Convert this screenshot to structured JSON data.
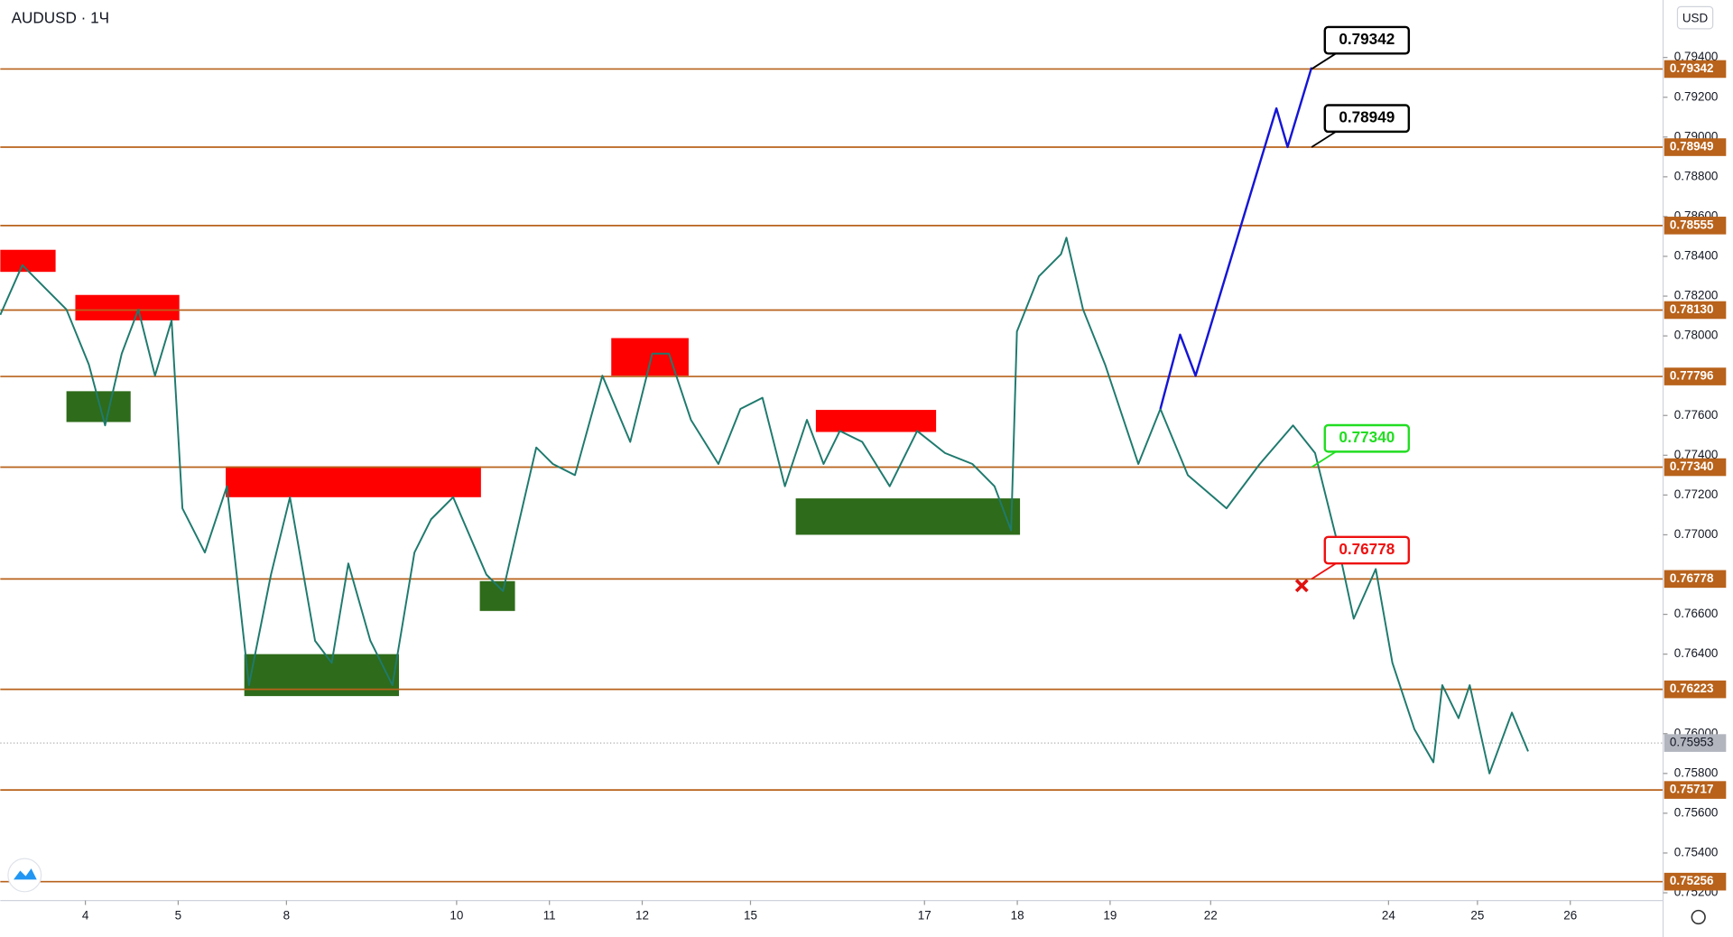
{
  "chart_data": {
    "type": "line",
    "title": "AUDUSD · 1Ч",
    "currency": "USD",
    "xlim": [
      0,
      430
    ],
    "ylim": [
      0.75161,
      0.79689
    ],
    "xticks": [
      {
        "value": 22,
        "label": "4"
      },
      {
        "value": 46,
        "label": "5"
      },
      {
        "value": 74,
        "label": "8"
      },
      {
        "value": 118,
        "label": "10"
      },
      {
        "value": 142,
        "label": "11"
      },
      {
        "value": 166,
        "label": "12"
      },
      {
        "value": 194,
        "label": "15"
      },
      {
        "value": 239,
        "label": "17"
      },
      {
        "value": 263,
        "label": "18"
      },
      {
        "value": 287,
        "label": "19"
      },
      {
        "value": 313,
        "label": "22"
      },
      {
        "value": 359,
        "label": "24"
      },
      {
        "value": 382,
        "label": "25"
      },
      {
        "value": 406,
        "label": "26"
      }
    ],
    "yticks": [
      {
        "value": 0.794,
        "label": "0.79400"
      },
      {
        "value": 0.792,
        "label": "0.79200"
      },
      {
        "value": 0.79,
        "label": "0.79000"
      },
      {
        "value": 0.788,
        "label": "0.78800"
      },
      {
        "value": 0.786,
        "label": "0.78600"
      },
      {
        "value": 0.784,
        "label": "0.78400"
      },
      {
        "value": 0.782,
        "label": "0.78200"
      },
      {
        "value": 0.78,
        "label": "0.78000"
      },
      {
        "value": 0.776,
        "label": "0.77600"
      },
      {
        "value": 0.774,
        "label": "0.77400"
      },
      {
        "value": 0.772,
        "label": "0.77200"
      },
      {
        "value": 0.77,
        "label": "0.77000"
      },
      {
        "value": 0.766,
        "label": "0.76600"
      },
      {
        "value": 0.764,
        "label": "0.76400"
      },
      {
        "value": 0.76,
        "label": "0.76000"
      },
      {
        "value": 0.758,
        "label": "0.75800"
      },
      {
        "value": 0.756,
        "label": "0.75600"
      },
      {
        "value": 0.754,
        "label": "0.75400"
      },
      {
        "value": 0.752,
        "label": "0.75200"
      }
    ],
    "price": {
      "color": "#1f7a6e",
      "x": [
        0,
        5.7,
        11.4,
        17.1,
        22.9,
        27.1,
        31.4,
        35.7,
        40,
        44.3,
        47.1,
        52.9,
        58.6,
        64.3,
        70,
        74.9,
        81.4,
        85.7,
        90,
        95.7,
        101.4,
        107.1,
        111.4,
        117.1,
        125.7,
        130,
        134.3,
        138.6,
        142.9,
        148.6,
        155.7,
        162.9,
        168.6,
        172.9,
        178.6,
        185.7,
        191.4,
        197.1,
        202.9,
        208.6,
        212.9,
        217.1,
        222.9,
        230,
        237.1,
        244.3,
        251.4,
        257.1,
        261.4,
        262.9,
        268.6,
        274.3,
        275.7,
        280,
        285.7,
        294.3,
        300,
        307.1,
        317.1,
        325.7,
        334.3,
        340,
        345.7,
        350,
        355.7,
        360,
        365.7,
        370.6,
        372.9,
        377.1,
        380,
        385.1,
        390.9,
        395.1
      ],
      "values": [
        0.78106,
        0.78356,
        0.78244,
        0.78133,
        0.77856,
        0.7755,
        0.77911,
        0.78133,
        0.778,
        0.78078,
        0.77133,
        0.76911,
        0.77244,
        0.76244,
        0.768,
        0.77189,
        0.76467,
        0.76356,
        0.76856,
        0.76467,
        0.76244,
        0.76911,
        0.77078,
        0.77189,
        0.768,
        0.76717,
        0.77078,
        0.77439,
        0.77356,
        0.773,
        0.778,
        0.77467,
        0.77911,
        0.77911,
        0.77578,
        0.77356,
        0.77633,
        0.77689,
        0.77244,
        0.77578,
        0.77356,
        0.77522,
        0.77467,
        0.77244,
        0.77522,
        0.77411,
        0.77356,
        0.77244,
        0.77022,
        0.78022,
        0.783,
        0.78411,
        0.78494,
        0.78133,
        0.77856,
        0.77356,
        0.77633,
        0.773,
        0.77133,
        0.77356,
        0.7755,
        0.77411,
        0.76967,
        0.76578,
        0.76828,
        0.76356,
        0.76022,
        0.75856,
        0.76244,
        0.76078,
        0.76244,
        0.758,
        0.76106,
        0.75911
      ]
    },
    "projection": {
      "color": "#1515d6",
      "x": [
        300,
        305.1,
        309.1,
        330,
        332.9,
        339.1
      ],
      "values": [
        0.77633,
        0.78006,
        0.778,
        0.79144,
        0.7895,
        0.7935
      ]
    },
    "levels": {
      "color": "#b8621b",
      "items": [
        {
          "value": 0.79342,
          "label": "0.79342"
        },
        {
          "value": 0.78949,
          "label": "0.78949"
        },
        {
          "value": 0.78555,
          "label": "0.78555"
        },
        {
          "value": 0.7813,
          "label": "0.78130"
        },
        {
          "value": 0.77796,
          "label": "0.77796"
        },
        {
          "value": 0.7734,
          "label": "0.77340"
        },
        {
          "value": 0.76778,
          "label": "0.76778"
        },
        {
          "value": 0.76223,
          "label": "0.76223"
        },
        {
          "value": 0.75717,
          "label": "0.75717"
        },
        {
          "value": 0.75256,
          "label": "0.75256"
        }
      ]
    },
    "last_price": {
      "value": 0.75953,
      "label": "0.75953"
    },
    "zones": [
      {
        "color": "#ff0000",
        "x": [
          0,
          14.3
        ],
        "y": [
          0.78322,
          0.78433
        ]
      },
      {
        "color": "#ff0000",
        "x": [
          19.4,
          46.3
        ],
        "y": [
          0.78078,
          0.78206
        ]
      },
      {
        "color": "#ff0000",
        "x": [
          58.3,
          124.3
        ],
        "y": [
          0.77189,
          0.77344
        ]
      },
      {
        "color": "#ff0000",
        "x": [
          158,
          178
        ],
        "y": [
          0.778,
          0.77989
        ]
      },
      {
        "color": "#ff0000",
        "x": [
          210.9,
          242
        ],
        "y": [
          0.77517,
          0.77628
        ]
      },
      {
        "color": "#2e6b1a",
        "x": [
          17.1,
          33.7
        ],
        "y": [
          0.77567,
          0.77722
        ]
      },
      {
        "color": "#2e6b1a",
        "x": [
          63.1,
          103.1
        ],
        "y": [
          0.76189,
          0.764
        ]
      },
      {
        "color": "#2e6b1a",
        "x": [
          124,
          133.1
        ],
        "y": [
          0.76617,
          0.76767
        ]
      },
      {
        "color": "#2e6b1a",
        "x": [
          205.7,
          263.7
        ],
        "y": [
          0.77,
          0.77183
        ]
      }
    ],
    "annotations": [
      {
        "label": "0.79342",
        "value": 0.79342,
        "x": 339.1,
        "color": "#000000"
      },
      {
        "label": "0.78949",
        "value": 0.78949,
        "x": 339.1,
        "color": "#000000"
      },
      {
        "label": "0.77340",
        "value": 0.7734,
        "x": 339.1,
        "color": "#22dd22"
      },
      {
        "label": "0.76778",
        "value": 0.76778,
        "x": 339.1,
        "color": "#ee1111"
      }
    ]
  }
}
